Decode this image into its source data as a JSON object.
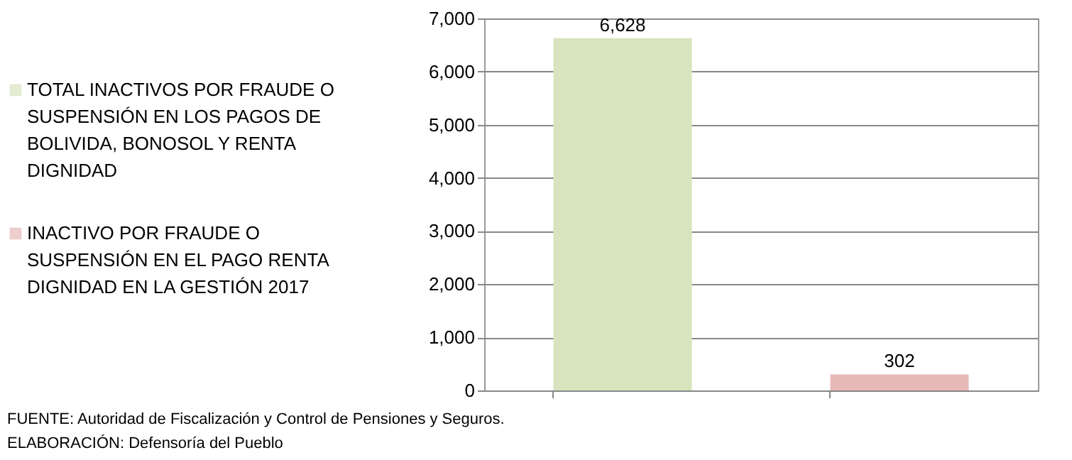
{
  "chart_data": {
    "type": "bar",
    "categories": [
      null,
      null
    ],
    "series": [
      {
        "name": "TOTAL INACTIVOS POR FRAUDE O SUSPENSIÓN  EN LOS PAGOS DE BOLIVIDA, BONOSOL Y RENTA DIGNIDAD",
        "color": "#d7e4bd",
        "values": [
          6628,
          null
        ],
        "value_labels": [
          "6,628",
          null
        ]
      },
      {
        "name": "INACTIVO POR FRAUDE O SUSPENSIÓN EN EL PAGO RENTA DIGNIDAD EN LA  GESTIÓN  2017",
        "color": "#e6b9b8",
        "values": [
          null,
          302
        ],
        "value_labels": [
          null,
          "302"
        ]
      }
    ],
    "ylim": [
      0,
      7000
    ],
    "yticks": [
      0,
      {
        "value": 1000,
        "label": "1,000"
      },
      {
        "value": 2000,
        "label": "2,000"
      },
      {
        "value": 3000,
        "label": "3,000"
      },
      {
        "value": 4000,
        "label": "4,000"
      },
      {
        "value": 5000,
        "label": "5,000"
      },
      {
        "value": 6000,
        "label": "6,000"
      },
      {
        "value": 7000,
        "label": "7,000"
      }
    ],
    "grid": "y",
    "legend": "left",
    "annotations": [
      "FUENTE: Autoridad de Fiscalización y Control de Pensiones y Seguros.",
      "ELABORACIÓN: Defensoría del Pueblo"
    ]
  }
}
